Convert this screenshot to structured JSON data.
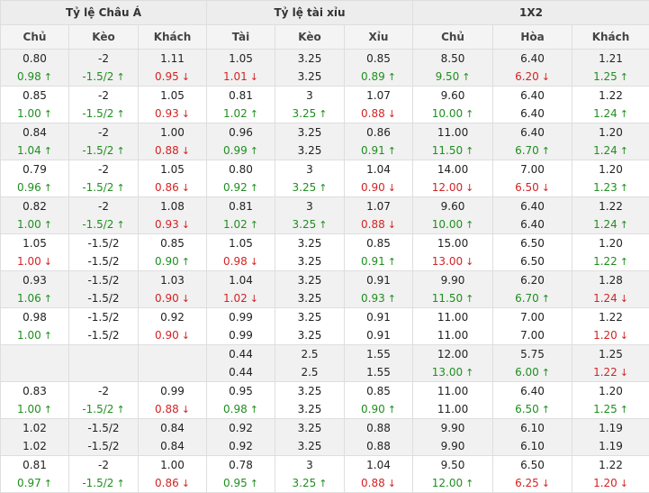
{
  "groups": [
    "Tỷ lệ Châu Á",
    "Tỷ lệ tài xỉu",
    "1X2"
  ],
  "columns": [
    "Chủ",
    "Kèo",
    "Khách",
    "Tài",
    "Kèo",
    "Xỉu",
    "Chủ",
    "Hòa",
    "Khách"
  ],
  "trend_colors": {
    "up": "#1f8f1f",
    "down": "#d32424"
  },
  "rows": [
    {
      "cells": [
        {
          "open": "0.80",
          "live": "0.98",
          "trend": "up"
        },
        {
          "open": "-2",
          "live": "-1.5/2",
          "trend": "up"
        },
        {
          "open": "1.11",
          "live": "0.95",
          "trend": "down"
        },
        {
          "open": "1.05",
          "live": "1.01",
          "trend": "down"
        },
        {
          "open": "3.25",
          "live": "3.25",
          "trend": ""
        },
        {
          "open": "0.85",
          "live": "0.89",
          "trend": "up"
        },
        {
          "open": "8.50",
          "live": "9.50",
          "trend": "up"
        },
        {
          "open": "6.40",
          "live": "6.20",
          "trend": "down"
        },
        {
          "open": "1.21",
          "live": "1.25",
          "trend": "up"
        }
      ]
    },
    {
      "cells": [
        {
          "open": "0.85",
          "live": "1.00",
          "trend": "up"
        },
        {
          "open": "-2",
          "live": "-1.5/2",
          "trend": "up"
        },
        {
          "open": "1.05",
          "live": "0.93",
          "trend": "down"
        },
        {
          "open": "0.81",
          "live": "1.02",
          "trend": "up"
        },
        {
          "open": "3",
          "live": "3.25",
          "trend": "up"
        },
        {
          "open": "1.07",
          "live": "0.88",
          "trend": "down"
        },
        {
          "open": "9.60",
          "live": "10.00",
          "trend": "up"
        },
        {
          "open": "6.40",
          "live": "6.40",
          "trend": ""
        },
        {
          "open": "1.22",
          "live": "1.24",
          "trend": "up"
        }
      ]
    },
    {
      "cells": [
        {
          "open": "0.84",
          "live": "1.04",
          "trend": "up"
        },
        {
          "open": "-2",
          "live": "-1.5/2",
          "trend": "up"
        },
        {
          "open": "1.00",
          "live": "0.88",
          "trend": "down"
        },
        {
          "open": "0.96",
          "live": "0.99",
          "trend": "up"
        },
        {
          "open": "3.25",
          "live": "3.25",
          "trend": ""
        },
        {
          "open": "0.86",
          "live": "0.91",
          "trend": "up"
        },
        {
          "open": "11.00",
          "live": "11.50",
          "trend": "up"
        },
        {
          "open": "6.40",
          "live": "6.70",
          "trend": "up"
        },
        {
          "open": "1.20",
          "live": "1.24",
          "trend": "up"
        }
      ]
    },
    {
      "cells": [
        {
          "open": "0.79",
          "live": "0.96",
          "trend": "up"
        },
        {
          "open": "-2",
          "live": "-1.5/2",
          "trend": "up"
        },
        {
          "open": "1.05",
          "live": "0.86",
          "trend": "down"
        },
        {
          "open": "0.80",
          "live": "0.92",
          "trend": "up"
        },
        {
          "open": "3",
          "live": "3.25",
          "trend": "up"
        },
        {
          "open": "1.04",
          "live": "0.90",
          "trend": "down"
        },
        {
          "open": "14.00",
          "live": "12.00",
          "trend": "down"
        },
        {
          "open": "7.00",
          "live": "6.50",
          "trend": "down"
        },
        {
          "open": "1.20",
          "live": "1.23",
          "trend": "up"
        }
      ]
    },
    {
      "cells": [
        {
          "open": "0.82",
          "live": "1.00",
          "trend": "up"
        },
        {
          "open": "-2",
          "live": "-1.5/2",
          "trend": "up"
        },
        {
          "open": "1.08",
          "live": "0.93",
          "trend": "down"
        },
        {
          "open": "0.81",
          "live": "1.02",
          "trend": "up"
        },
        {
          "open": "3",
          "live": "3.25",
          "trend": "up"
        },
        {
          "open": "1.07",
          "live": "0.88",
          "trend": "down"
        },
        {
          "open": "9.60",
          "live": "10.00",
          "trend": "up"
        },
        {
          "open": "6.40",
          "live": "6.40",
          "trend": ""
        },
        {
          "open": "1.22",
          "live": "1.24",
          "trend": "up"
        }
      ]
    },
    {
      "cells": [
        {
          "open": "1.05",
          "live": "1.00",
          "trend": "down"
        },
        {
          "open": "-1.5/2",
          "live": "-1.5/2",
          "trend": ""
        },
        {
          "open": "0.85",
          "live": "0.90",
          "trend": "up"
        },
        {
          "open": "1.05",
          "live": "0.98",
          "trend": "down"
        },
        {
          "open": "3.25",
          "live": "3.25",
          "trend": ""
        },
        {
          "open": "0.85",
          "live": "0.91",
          "trend": "up"
        },
        {
          "open": "15.00",
          "live": "13.00",
          "trend": "down"
        },
        {
          "open": "6.50",
          "live": "6.50",
          "trend": ""
        },
        {
          "open": "1.20",
          "live": "1.22",
          "trend": "up"
        }
      ]
    },
    {
      "cells": [
        {
          "open": "0.93",
          "live": "1.06",
          "trend": "up"
        },
        {
          "open": "-1.5/2",
          "live": "-1.5/2",
          "trend": ""
        },
        {
          "open": "1.03",
          "live": "0.90",
          "trend": "down"
        },
        {
          "open": "1.04",
          "live": "1.02",
          "trend": "down"
        },
        {
          "open": "3.25",
          "live": "3.25",
          "trend": ""
        },
        {
          "open": "0.91",
          "live": "0.93",
          "trend": "up"
        },
        {
          "open": "9.90",
          "live": "11.50",
          "trend": "up"
        },
        {
          "open": "6.20",
          "live": "6.70",
          "trend": "up"
        },
        {
          "open": "1.28",
          "live": "1.24",
          "trend": "down"
        }
      ]
    },
    {
      "cells": [
        {
          "open": "0.98",
          "live": "1.00",
          "trend": "up"
        },
        {
          "open": "-1.5/2",
          "live": "-1.5/2",
          "trend": ""
        },
        {
          "open": "0.92",
          "live": "0.90",
          "trend": "down"
        },
        {
          "open": "0.99",
          "live": "0.99",
          "trend": ""
        },
        {
          "open": "3.25",
          "live": "3.25",
          "trend": ""
        },
        {
          "open": "0.91",
          "live": "0.91",
          "trend": ""
        },
        {
          "open": "11.00",
          "live": "11.00",
          "trend": ""
        },
        {
          "open": "7.00",
          "live": "7.00",
          "trend": ""
        },
        {
          "open": "1.22",
          "live": "1.20",
          "trend": "down"
        }
      ]
    },
    {
      "cells": [
        {
          "open": "",
          "live": "",
          "trend": ""
        },
        {
          "open": "",
          "live": "",
          "trend": ""
        },
        {
          "open": "",
          "live": "",
          "trend": ""
        },
        {
          "open": "0.44",
          "live": "0.44",
          "trend": ""
        },
        {
          "open": "2.5",
          "live": "2.5",
          "trend": ""
        },
        {
          "open": "1.55",
          "live": "1.55",
          "trend": ""
        },
        {
          "open": "12.00",
          "live": "13.00",
          "trend": "up"
        },
        {
          "open": "5.75",
          "live": "6.00",
          "trend": "up"
        },
        {
          "open": "1.25",
          "live": "1.22",
          "trend": "down"
        }
      ]
    },
    {
      "cells": [
        {
          "open": "0.83",
          "live": "1.00",
          "trend": "up"
        },
        {
          "open": "-2",
          "live": "-1.5/2",
          "trend": "up"
        },
        {
          "open": "0.99",
          "live": "0.88",
          "trend": "down"
        },
        {
          "open": "0.95",
          "live": "0.98",
          "trend": "up"
        },
        {
          "open": "3.25",
          "live": "3.25",
          "trend": ""
        },
        {
          "open": "0.85",
          "live": "0.90",
          "trend": "up"
        },
        {
          "open": "11.00",
          "live": "11.00",
          "trend": ""
        },
        {
          "open": "6.40",
          "live": "6.50",
          "trend": "up"
        },
        {
          "open": "1.20",
          "live": "1.25",
          "trend": "up"
        }
      ]
    },
    {
      "cells": [
        {
          "open": "1.02",
          "live": "1.02",
          "trend": ""
        },
        {
          "open": "-1.5/2",
          "live": "-1.5/2",
          "trend": ""
        },
        {
          "open": "0.84",
          "live": "0.84",
          "trend": ""
        },
        {
          "open": "0.92",
          "live": "0.92",
          "trend": ""
        },
        {
          "open": "3.25",
          "live": "3.25",
          "trend": ""
        },
        {
          "open": "0.88",
          "live": "0.88",
          "trend": ""
        },
        {
          "open": "9.90",
          "live": "9.90",
          "trend": ""
        },
        {
          "open": "6.10",
          "live": "6.10",
          "trend": ""
        },
        {
          "open": "1.19",
          "live": "1.19",
          "trend": ""
        }
      ]
    },
    {
      "cells": [
        {
          "open": "0.81",
          "live": "0.97",
          "trend": "up"
        },
        {
          "open": "-2",
          "live": "-1.5/2",
          "trend": "up"
        },
        {
          "open": "1.00",
          "live": "0.86",
          "trend": "down"
        },
        {
          "open": "0.78",
          "live": "0.95",
          "trend": "up"
        },
        {
          "open": "3",
          "live": "3.25",
          "trend": "up"
        },
        {
          "open": "1.04",
          "live": "0.88",
          "trend": "down"
        },
        {
          "open": "9.50",
          "live": "12.00",
          "trend": "up"
        },
        {
          "open": "6.50",
          "live": "6.25",
          "trend": "down"
        },
        {
          "open": "1.22",
          "live": "1.20",
          "trend": "down"
        }
      ]
    }
  ]
}
